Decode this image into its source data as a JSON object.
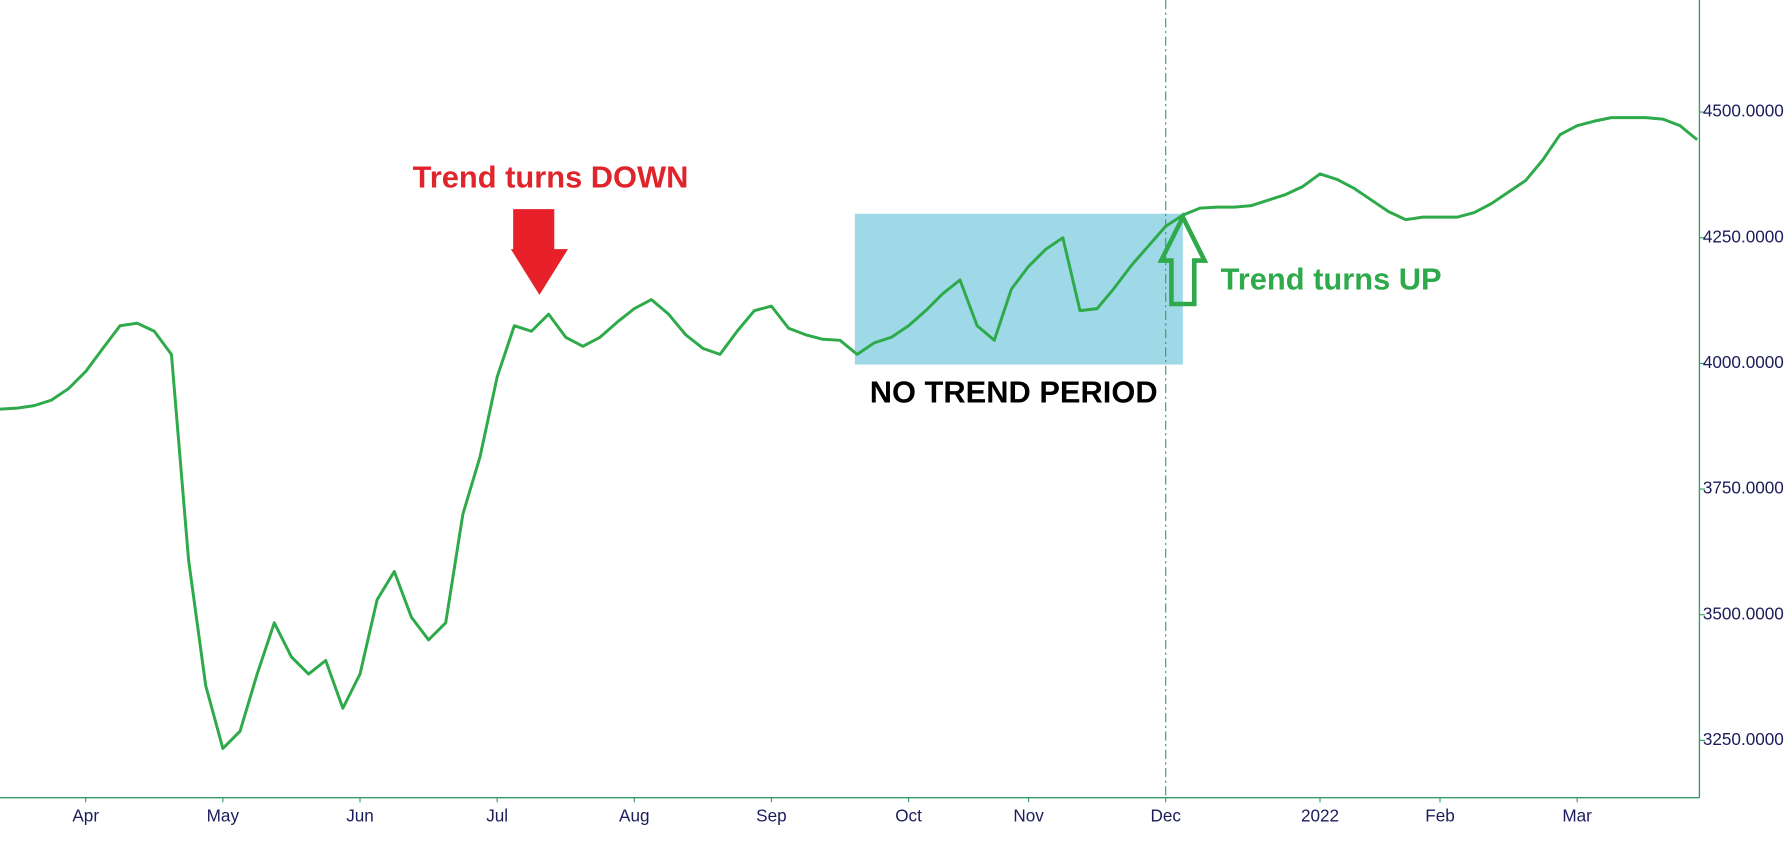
{
  "chart_data": {
    "type": "line",
    "color": "#2eaa4a",
    "categories": [
      null,
      null,
      null,
      null,
      null,
      "Apr",
      null,
      null,
      null,
      null,
      null,
      null,
      null,
      "May",
      null,
      null,
      null,
      null,
      null,
      null,
      null,
      "Jun",
      null,
      null,
      null,
      null,
      null,
      null,
      null,
      "Jul",
      null,
      null,
      null,
      null,
      null,
      null,
      null,
      "Aug",
      null,
      null,
      null,
      null,
      null,
      null,
      null,
      "Sep",
      null,
      null,
      null,
      null,
      null,
      null,
      null,
      "Oct",
      null,
      null,
      null,
      null,
      null,
      null,
      "Nov",
      null,
      null,
      null,
      null,
      null,
      null,
      null,
      "Dec",
      null,
      null,
      null,
      null,
      null,
      null,
      null,
      null,
      "2022",
      null,
      null,
      null,
      null,
      null,
      null,
      "Feb",
      null,
      null,
      null,
      null,
      null,
      null,
      null,
      "Mar",
      null,
      null,
      null,
      null,
      null,
      null,
      null
    ],
    "values": [
      3909,
      3911,
      3916,
      3927,
      3950,
      3984,
      4030,
      4075,
      4080,
      4064,
      4018,
      3609,
      3359,
      3234,
      3268,
      3382,
      3484,
      3416,
      3382,
      3409,
      3314,
      3382,
      3530,
      3586,
      3495,
      3450,
      3484,
      3700,
      3814,
      3973,
      4075,
      4064,
      4098,
      4052,
      4034,
      4052,
      4082,
      4109,
      4127,
      4098,
      4057,
      4030,
      4018,
      4064,
      4105,
      4114,
      4070,
      4057,
      4048,
      4046,
      4018,
      4041,
      4052,
      4075,
      4105,
      4139,
      4166,
      4075,
      4046,
      4148,
      4193,
      4227,
      4250,
      4105,
      4109,
      4150,
      4195,
      4234,
      4273,
      4295,
      4309,
      4311,
      4311,
      4314,
      4325,
      4336,
      4352,
      4377,
      4366,
      4348,
      4325,
      4302,
      4286,
      4291,
      4291,
      4291,
      4300,
      4318,
      4341,
      4364,
      4405,
      4455,
      4473,
      4482,
      4489,
      4489,
      4489,
      4486,
      4473,
      4445
    ],
    "ylim": [
      3136,
      4723
    ],
    "yticks": [
      {
        "value": 3250,
        "label": "3250.0000"
      },
      {
        "value": 3500,
        "label": "3500.0000"
      },
      {
        "value": 3750,
        "label": "3750.0000"
      },
      {
        "value": 4000,
        "label": "4000.0000"
      },
      {
        "value": 4250,
        "label": "4250.0000"
      },
      {
        "value": 4500,
        "label": "4500.0000"
      }
    ],
    "annotations": [
      "Trend turns DOWN",
      "NO TREND PERIOD",
      "Trend turns UP"
    ]
  }
}
